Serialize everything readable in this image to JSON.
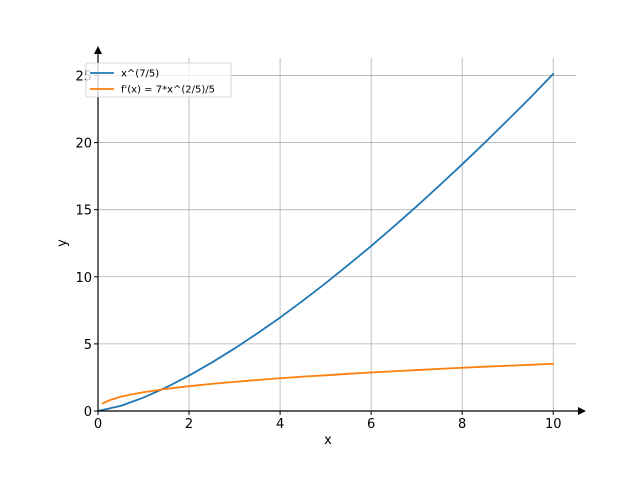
{
  "chart_data": {
    "type": "line",
    "title": "",
    "xlabel": "x",
    "ylabel": "y",
    "xlim": [
      0,
      10.5
    ],
    "ylim": [
      0,
      26.3
    ],
    "x_ticks": [
      0,
      2,
      4,
      6,
      8,
      10
    ],
    "y_ticks": [
      0,
      5,
      10,
      15,
      20,
      25
    ],
    "grid": true,
    "legend_position": "top-left",
    "series": [
      {
        "name": "x^(7/5)",
        "color": "#1f77b4",
        "x": [
          0,
          0.5,
          1,
          1.5,
          2,
          2.5,
          3,
          3.5,
          4,
          4.5,
          5,
          5.5,
          6,
          6.5,
          7,
          7.5,
          8,
          8.5,
          9,
          9.5,
          10
        ],
        "y": [
          0,
          0.38,
          1.0,
          1.76,
          2.64,
          3.61,
          4.66,
          5.78,
          6.96,
          8.22,
          9.52,
          10.89,
          12.29,
          13.75,
          15.25,
          16.8,
          18.38,
          20.0,
          21.67,
          23.36,
          25.12
        ]
      },
      {
        "name": "f'(x) = 7*x^(2/5)/5",
        "color": "#ff7f0e",
        "x": [
          0.1,
          0.25,
          0.5,
          0.75,
          1,
          1.5,
          2,
          2.5,
          3,
          3.5,
          4,
          4.5,
          5,
          5.5,
          6,
          6.5,
          7,
          7.5,
          8,
          8.5,
          9,
          9.5,
          10
        ],
        "y": [
          0.56,
          0.8,
          1.06,
          1.25,
          1.4,
          1.65,
          1.85,
          2.02,
          2.17,
          2.31,
          2.44,
          2.56,
          2.66,
          2.77,
          2.87,
          2.96,
          3.05,
          3.14,
          3.22,
          3.3,
          3.37,
          3.44,
          3.52
        ]
      }
    ]
  }
}
